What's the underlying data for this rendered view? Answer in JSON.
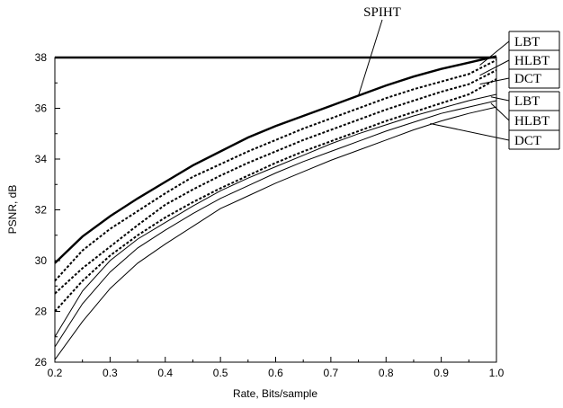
{
  "chart_data": {
    "type": "line",
    "xlabel": "Rate, Bits/sample",
    "ylabel": "PSNR, dB",
    "xlim": [
      0.2,
      1.0
    ],
    "ylim": [
      26,
      38
    ],
    "x_ticks": [
      "0.2",
      "0.3",
      "0.4",
      "0.5",
      "0.6",
      "0.7",
      "0.8",
      "0.9",
      "1.0"
    ],
    "y_ticks": [
      "26",
      "28",
      "30",
      "32",
      "34",
      "36",
      "38"
    ],
    "grid": false,
    "x": [
      0.2,
      0.25,
      0.3,
      0.35,
      0.4,
      0.45,
      0.5,
      0.55,
      0.6,
      0.65,
      0.7,
      0.75,
      0.8,
      0.85,
      0.9,
      0.95,
      1.0
    ],
    "series": [
      {
        "name": "SPIHT",
        "style": "thick-solid",
        "values": [
          29.9,
          30.95,
          31.75,
          32.45,
          33.1,
          33.75,
          34.3,
          34.85,
          35.3,
          35.7,
          36.1,
          36.5,
          36.9,
          37.25,
          37.55,
          37.8,
          38.05
        ]
      },
      {
        "name": "LBT",
        "style": "dotted",
        "values": [
          29.2,
          30.4,
          31.25,
          31.95,
          32.65,
          33.3,
          33.8,
          34.3,
          34.75,
          35.2,
          35.6,
          36.0,
          36.4,
          36.75,
          37.05,
          37.35,
          37.9
        ]
      },
      {
        "name": "HLBT",
        "style": "dotted",
        "values": [
          28.7,
          29.7,
          30.55,
          31.4,
          32.2,
          32.8,
          33.35,
          33.85,
          34.3,
          34.75,
          35.15,
          35.55,
          35.95,
          36.3,
          36.65,
          36.95,
          37.5
        ]
      },
      {
        "name": "DCT",
        "style": "dotted",
        "values": [
          28.0,
          29.2,
          30.2,
          31.0,
          31.7,
          32.3,
          32.85,
          33.35,
          33.85,
          34.3,
          34.7,
          35.1,
          35.5,
          35.85,
          36.2,
          36.55,
          37.15
        ]
      },
      {
        "name": "LBT",
        "style": "thin-solid",
        "values": [
          27.0,
          28.8,
          30.0,
          30.85,
          31.5,
          32.15,
          32.75,
          33.25,
          33.7,
          34.15,
          34.6,
          35.0,
          35.35,
          35.7,
          36.0,
          36.3,
          36.55
        ]
      },
      {
        "name": "HLBT",
        "style": "thin-solid",
        "values": [
          26.6,
          28.3,
          29.55,
          30.5,
          31.2,
          31.85,
          32.45,
          32.95,
          33.45,
          33.9,
          34.3,
          34.7,
          35.1,
          35.45,
          35.8,
          36.05,
          36.3
        ]
      },
      {
        "name": "DCT",
        "style": "thin-solid",
        "values": [
          26.1,
          27.6,
          28.9,
          29.9,
          30.65,
          31.35,
          32.05,
          32.55,
          33.05,
          33.5,
          33.95,
          34.35,
          34.75,
          35.15,
          35.5,
          35.8,
          36.05
        ]
      }
    ],
    "annotations": [
      "SPIHT",
      "LBT",
      "HLBT",
      "DCT",
      "LBT",
      "HLBT",
      "DCT"
    ]
  }
}
